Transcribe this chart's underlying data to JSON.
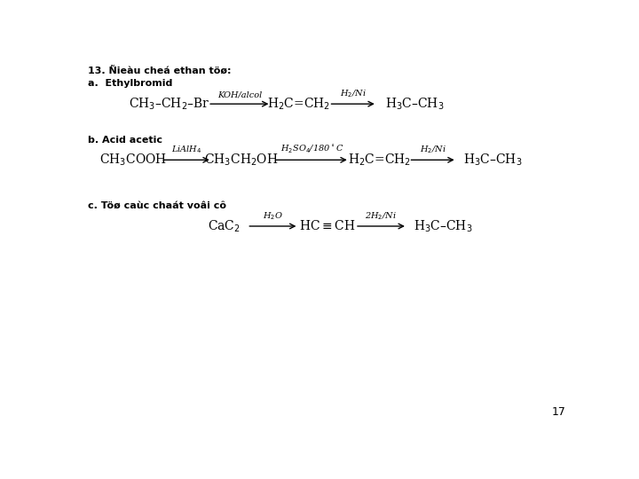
{
  "background_color": "#ffffff",
  "title": "13. Ñieàu cheá ethan töø:",
  "section_a": "a.  Ethylbromid",
  "section_b": "b. Acid acetic",
  "section_c": "c. Töø caùc chaát voâi cô",
  "page_number": "17",
  "title_fontsize": 8,
  "section_fontsize": 8,
  "compound_fontsize": 10,
  "arrow_label_fontsize": 7,
  "page_fontsize": 9
}
